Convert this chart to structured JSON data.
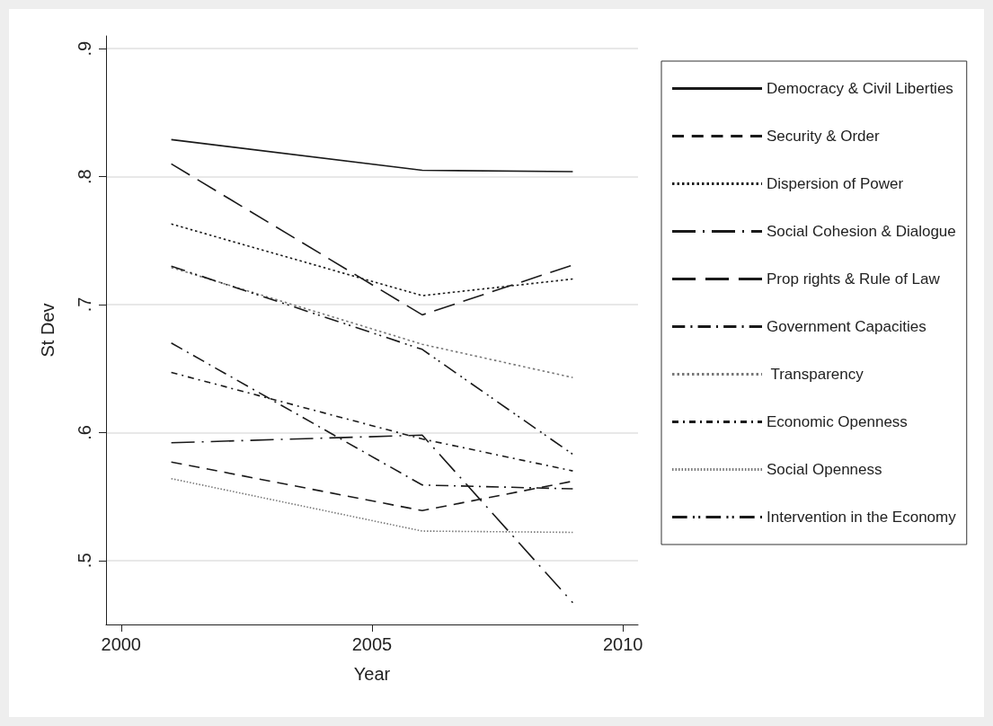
{
  "chart_data": {
    "type": "line",
    "xlabel": "Year",
    "ylabel": "St Dev",
    "x": [
      2001,
      2006,
      2009
    ],
    "xlim": [
      1999.7,
      2010.3
    ],
    "xticks": [
      2000,
      2005,
      2010
    ],
    "ylim": [
      0.45,
      0.91
    ],
    "yticks": [
      {
        "value": 0.5,
        "label": ".5"
      },
      {
        "value": 0.6,
        "label": ".6"
      },
      {
        "value": 0.7,
        "label": ".7"
      },
      {
        "value": 0.8,
        "label": ".8"
      },
      {
        "value": 0.9,
        "label": ".9"
      }
    ],
    "grid": "y",
    "legend": "right",
    "marker": "none",
    "series": [
      {
        "name": "Democracy & Civil Liberties",
        "color": "#1a1a1a",
        "line_style": "solid",
        "values": [
          0.829,
          0.805,
          0.804
        ]
      },
      {
        "name": "Security & Order",
        "color": "#1a1a1a",
        "line_style": "dashed",
        "values": [
          0.577,
          0.539,
          0.562
        ]
      },
      {
        "name": "Dispersion of Power",
        "color": "#1a1a1a",
        "line_style": "dotted",
        "values": [
          0.763,
          0.707,
          0.72
        ]
      },
      {
        "name": "Social Cohesion & Dialogue",
        "color": "#1a1a1a",
        "line_style": "longdashdot",
        "values": [
          0.592,
          0.598,
          0.467
        ]
      },
      {
        "name": "Prop rights & Rule of Law",
        "color": "#1a1a1a",
        "line_style": "longdash",
        "values": [
          0.81,
          0.692,
          0.731
        ]
      },
      {
        "name": "Government Capacities",
        "color": "#1a1a1a",
        "line_style": "dashdot",
        "values": [
          0.67,
          0.559,
          0.556
        ]
      },
      {
        "name": " Transparency",
        "color": "#777777",
        "line_style": "dotted",
        "values": [
          0.729,
          0.669,
          0.643
        ]
      },
      {
        "name": "Economic Openness",
        "color": "#1a1a1a",
        "line_style": "shortdashdot",
        "values": [
          0.647,
          0.595,
          0.57
        ]
      },
      {
        "name": "Social Openness",
        "color": "#777777",
        "line_style": "densedot",
        "values": [
          0.564,
          0.523,
          0.522
        ]
      },
      {
        "name": "Intervention in the Economy",
        "color": "#1a1a1a",
        "line_style": "dashdotdot",
        "values": [
          0.73,
          0.665,
          0.583
        ]
      }
    ]
  }
}
